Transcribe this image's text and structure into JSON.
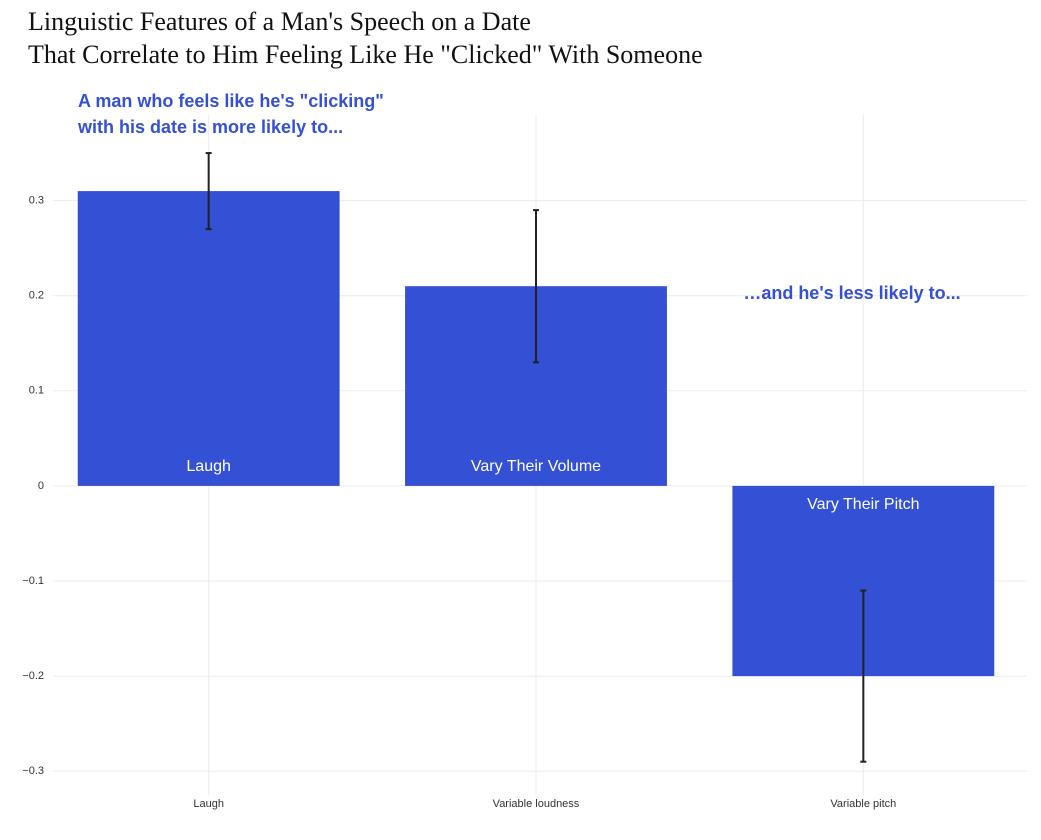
{
  "chart_data": {
    "type": "bar",
    "title": [
      "Linguistic Features of a Man's Speech on a Date",
      "That Correlate to Him Feeling Like He \"Clicked\" With Someone"
    ],
    "annotations": [
      [
        "A man who feels like he's \"clicking\"",
        "with his date is more likely to..."
      ],
      [
        "…and he's less likely to..."
      ]
    ],
    "categories": [
      "Laugh",
      "Variable loudness",
      "Variable pitch"
    ],
    "bar_labels": [
      "Laugh",
      "Vary Their Volume",
      "Vary Their Pitch"
    ],
    "values": [
      0.31,
      0.21,
      -0.2
    ],
    "errors": [
      0.04,
      0.08,
      0.09
    ],
    "color": "#3450d4",
    "ylim": [
      -0.325,
      0.39
    ],
    "yticks": [
      {
        "value": -0.3,
        "label": "−0.3"
      },
      {
        "value": -0.2,
        "label": "−0.2"
      },
      {
        "value": -0.1,
        "label": "−0.1"
      },
      0,
      0.1,
      0.2,
      0.3
    ],
    "grid": true
  }
}
